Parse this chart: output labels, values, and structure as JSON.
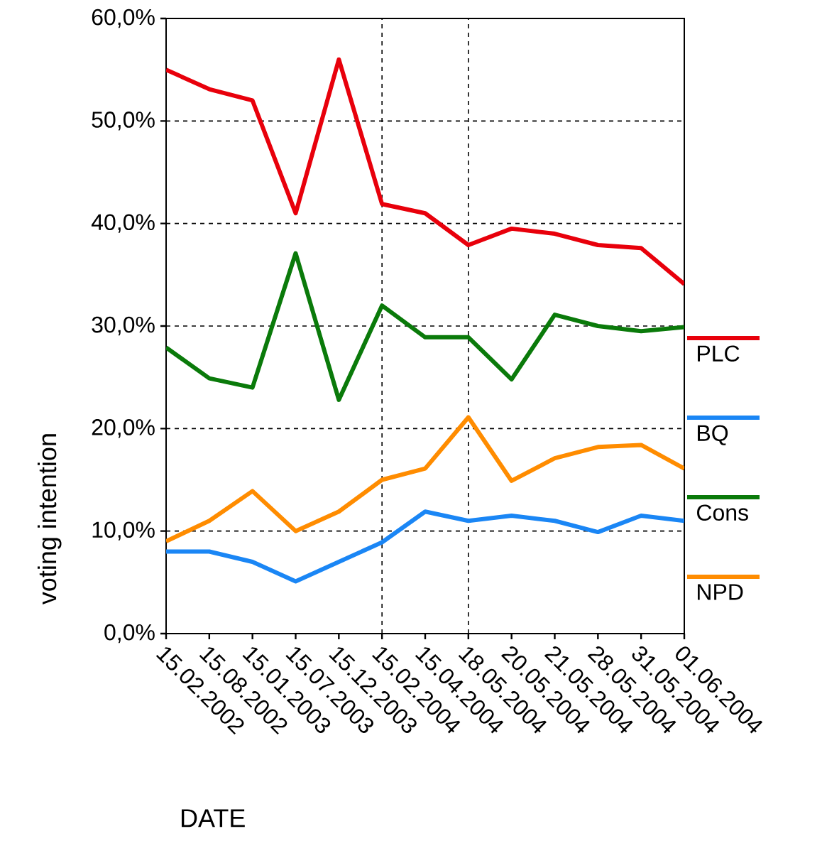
{
  "chart_data": {
    "type": "line",
    "xlabel": "DATE",
    "ylabel": "voting intention",
    "categories": [
      "15.02.2002",
      "15.08.2002",
      "15.01.2003",
      "15.07.2003",
      "15.12.2003",
      "15.02.2004",
      "15.04.2004",
      "18.05.2004",
      "20.05.2004",
      "21.05.2004",
      "28.05.2004",
      "31.05.2004",
      "01.06.2004"
    ],
    "series": [
      {
        "name": "PLC",
        "color": "#e8000b",
        "values": [
          55.0,
          53.1,
          52.0,
          41.0,
          56.0,
          41.9,
          41.0,
          37.9,
          39.5,
          39.0,
          37.9,
          37.6,
          34.1
        ]
      },
      {
        "name": "BQ",
        "color": "#1a86f5",
        "values": [
          8.0,
          8.0,
          7.0,
          5.1,
          7.0,
          8.9,
          11.9,
          11.0,
          11.5,
          11.0,
          9.9,
          11.5,
          11.0
        ]
      },
      {
        "name": "Cons",
        "color": "#0a7a0a",
        "values": [
          27.9,
          24.9,
          24.0,
          37.1,
          22.8,
          32.0,
          28.9,
          28.9,
          24.8,
          31.1,
          30.0,
          29.5,
          29.9
        ]
      },
      {
        "name": "NPD",
        "color": "#ff8c00",
        "values": [
          9.0,
          11.0,
          13.9,
          10.0,
          11.9,
          15.0,
          16.1,
          21.1,
          14.9,
          17.1,
          18.2,
          18.4,
          16.1
        ]
      }
    ],
    "ylim": [
      0,
      60
    ],
    "yticks": [
      {
        "value": 0,
        "label": "0,0%"
      },
      {
        "value": 10,
        "label": "10,0%"
      },
      {
        "value": 20,
        "label": "20,0%"
      },
      {
        "value": 30,
        "label": "30,0%"
      },
      {
        "value": 40,
        "label": "40,0%"
      },
      {
        "value": 50,
        "label": "50,0%"
      },
      {
        "value": 60,
        "label": "60,0%"
      }
    ],
    "grid": "y",
    "legend": "right",
    "ref_lines": [
      {
        "axis": "x",
        "value": "15.02.2004"
      },
      {
        "axis": "x",
        "value": "18.05.2004"
      }
    ]
  }
}
